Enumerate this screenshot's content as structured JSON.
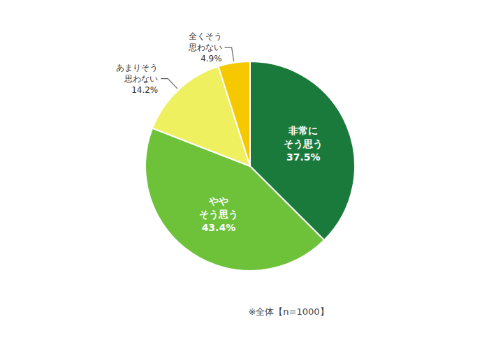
{
  "chart_data": {
    "type": "pie",
    "categories": [
      "非常に\nそう思う",
      "やや\nそう思う",
      "あまりそう\n思わない",
      "全くそう\n思わない"
    ],
    "values": [
      37.5,
      43.4,
      14.2,
      4.9
    ],
    "value_labels": [
      "37.5%",
      "43.4%",
      "14.2%",
      "4.9%"
    ],
    "colors": [
      "#1a7a3c",
      "#6dc23a",
      "#eef060",
      "#f5c800"
    ],
    "data_labels": true,
    "annotations": [
      "※全体【n=1000】"
    ]
  }
}
